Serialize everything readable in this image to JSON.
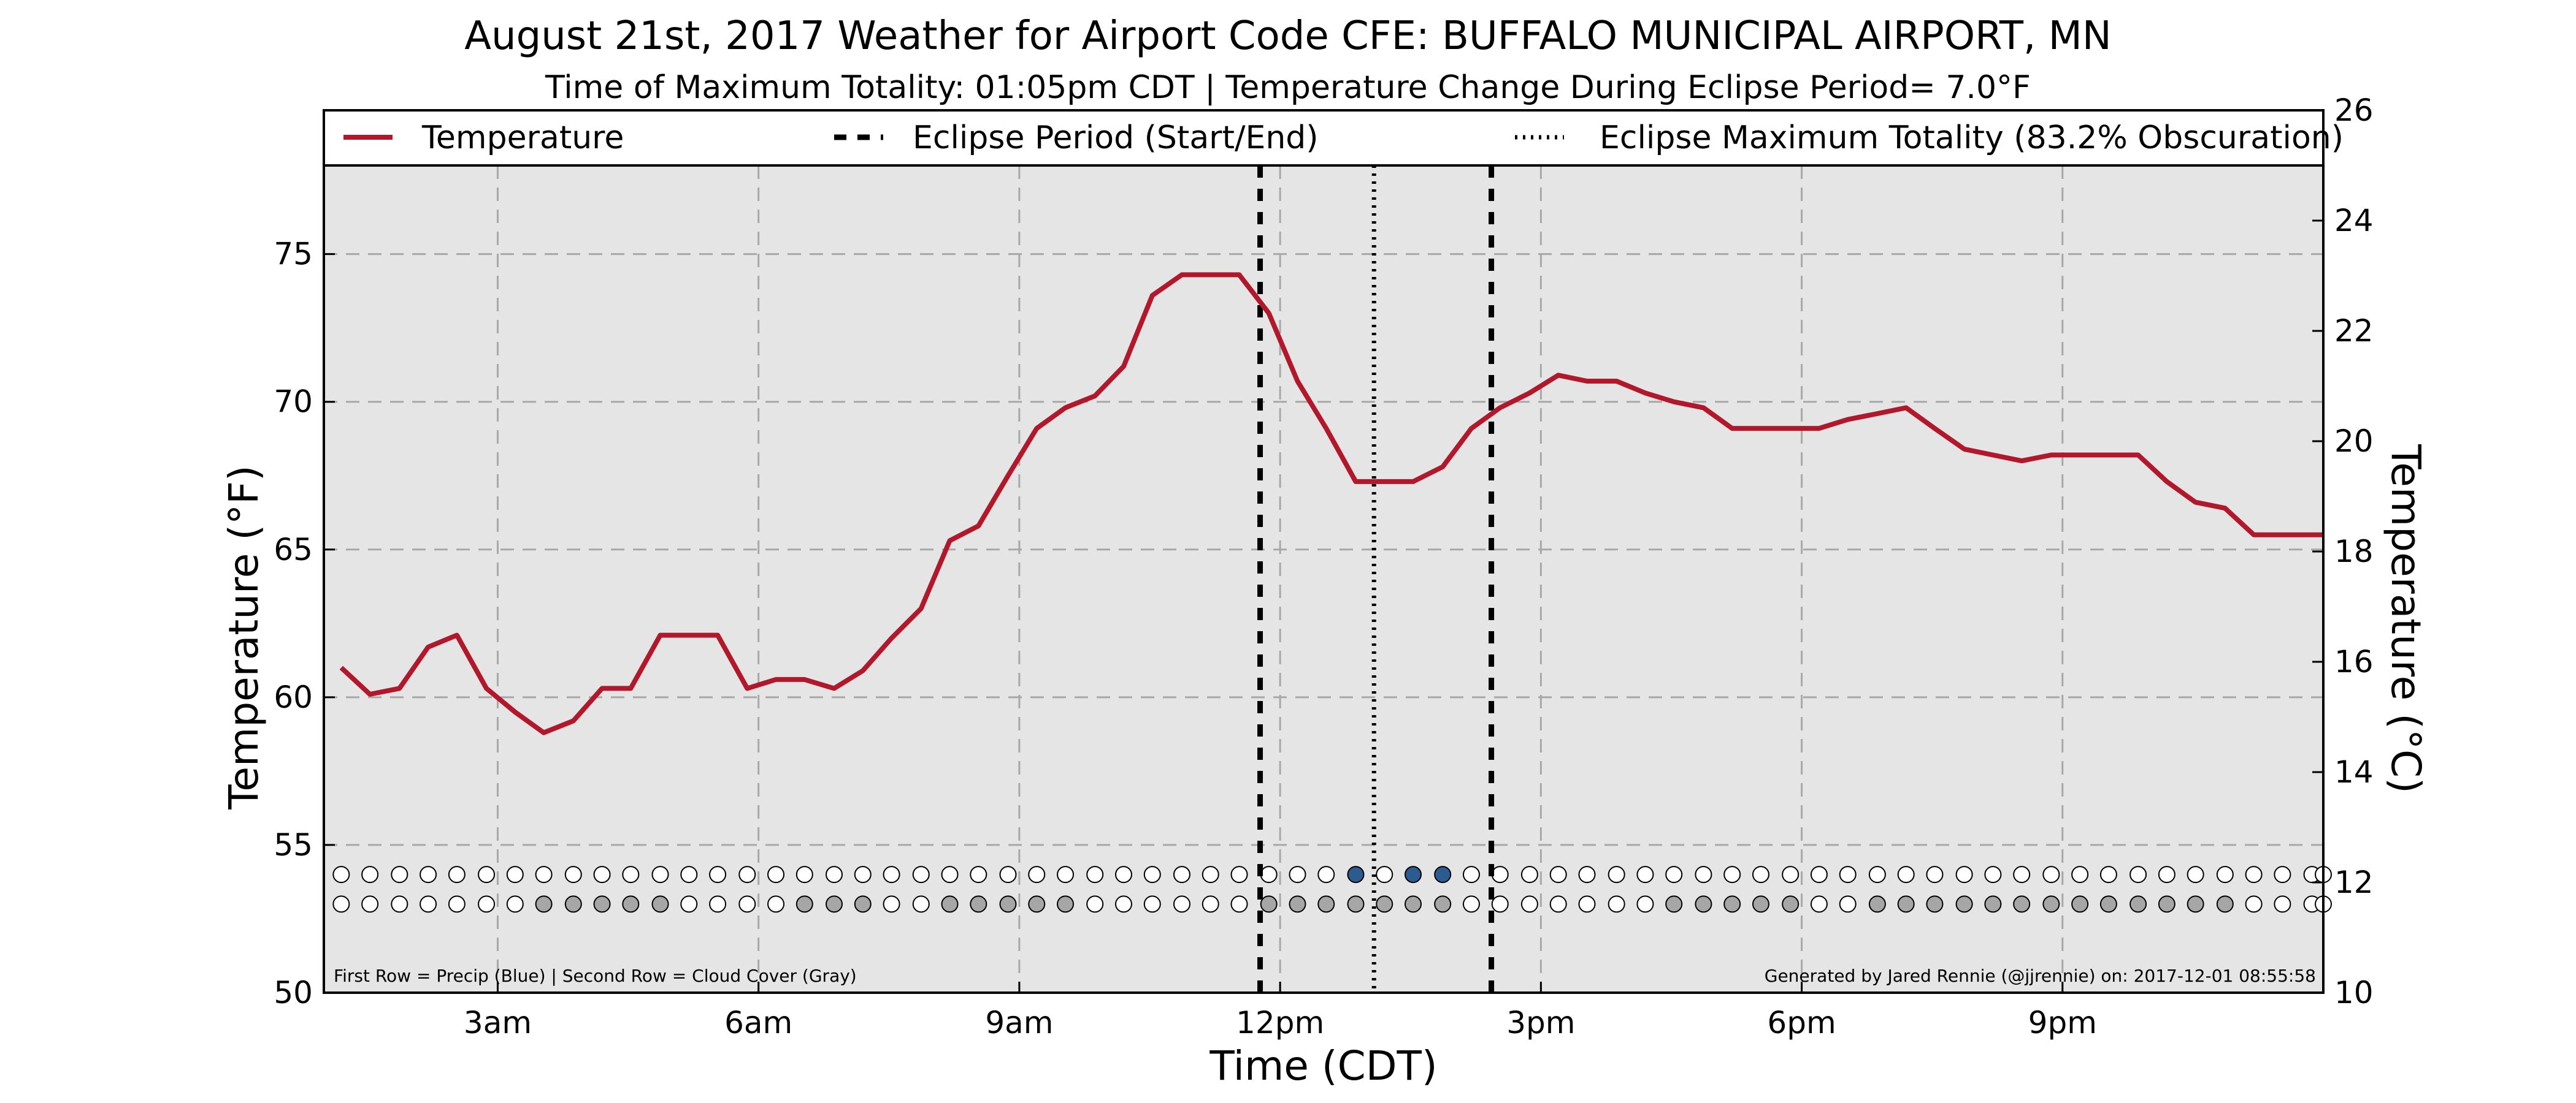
{
  "chart_data": {
    "type": "line",
    "title": "August 21st, 2017 Weather for Airport Code CFE: BUFFALO MUNICIPAL AIRPORT, MN",
    "subtitle": "Time of Maximum Totality: 01:05pm CDT | Temperature Change During Eclipse Period= 7.0°F",
    "xlabel": "Time (CDT)",
    "ylabel": "Temperature (°F)",
    "ylabel_right": "Temperature (°C)",
    "xlim": [
      1.0,
      24.0
    ],
    "ylim": [
      50,
      78
    ],
    "ylim_right": [
      10,
      26
    ],
    "x_ticks": [
      {
        "value": 3,
        "label": "3am"
      },
      {
        "value": 6,
        "label": "6am"
      },
      {
        "value": 9,
        "label": "9am"
      },
      {
        "value": 12,
        "label": "12pm"
      },
      {
        "value": 15,
        "label": "3pm"
      },
      {
        "value": 18,
        "label": "6pm"
      },
      {
        "value": 21,
        "label": "9pm"
      }
    ],
    "y_ticks": [
      50,
      55,
      60,
      65,
      70,
      75
    ],
    "y_ticks_right": [
      10,
      12,
      14,
      16,
      18,
      20,
      22,
      24,
      26
    ],
    "grid": true,
    "legend_position": "top",
    "legend": [
      {
        "label": "Temperature",
        "style": "solid"
      },
      {
        "label": "Eclipse Period (Start/End)",
        "style": "dashed"
      },
      {
        "label": "Eclipse Maximum Totality (83.2% Obscuration)",
        "style": "dotted"
      }
    ],
    "series": [
      {
        "name": "Temperature",
        "color": "#b2182b",
        "points": [
          [
            1.2,
            61.0
          ],
          [
            1.53,
            60.1
          ],
          [
            1.87,
            60.3
          ],
          [
            2.2,
            61.7
          ],
          [
            2.53,
            62.1
          ],
          [
            2.87,
            60.3
          ],
          [
            3.2,
            59.5
          ],
          [
            3.53,
            58.8
          ],
          [
            3.87,
            59.2
          ],
          [
            4.2,
            60.3
          ],
          [
            4.53,
            60.3
          ],
          [
            4.87,
            62.1
          ],
          [
            5.2,
            62.1
          ],
          [
            5.53,
            62.1
          ],
          [
            5.87,
            60.3
          ],
          [
            6.2,
            60.6
          ],
          [
            6.53,
            60.6
          ],
          [
            6.87,
            60.3
          ],
          [
            7.2,
            60.9
          ],
          [
            7.53,
            62.0
          ],
          [
            7.87,
            63.0
          ],
          [
            8.2,
            65.3
          ],
          [
            8.53,
            65.8
          ],
          [
            8.87,
            67.5
          ],
          [
            9.2,
            69.1
          ],
          [
            9.53,
            69.8
          ],
          [
            9.87,
            70.2
          ],
          [
            10.2,
            71.2
          ],
          [
            10.53,
            73.6
          ],
          [
            10.87,
            74.3
          ],
          [
            11.2,
            74.3
          ],
          [
            11.53,
            74.3
          ],
          [
            11.87,
            73.0
          ],
          [
            12.2,
            70.7
          ],
          [
            12.53,
            69.1
          ],
          [
            12.87,
            67.3
          ],
          [
            13.2,
            67.3
          ],
          [
            13.53,
            67.3
          ],
          [
            13.87,
            67.8
          ],
          [
            14.2,
            69.1
          ],
          [
            14.53,
            69.8
          ],
          [
            14.87,
            70.3
          ],
          [
            15.2,
            70.9
          ],
          [
            15.53,
            70.7
          ],
          [
            15.87,
            70.7
          ],
          [
            16.2,
            70.3
          ],
          [
            16.53,
            70.0
          ],
          [
            16.87,
            69.8
          ],
          [
            17.2,
            69.1
          ],
          [
            17.53,
            69.1
          ],
          [
            17.87,
            69.1
          ],
          [
            18.2,
            69.1
          ],
          [
            18.53,
            69.4
          ],
          [
            18.87,
            69.6
          ],
          [
            19.2,
            69.8
          ],
          [
            19.53,
            69.1
          ],
          [
            19.87,
            68.4
          ],
          [
            20.2,
            68.2
          ],
          [
            20.53,
            68.0
          ],
          [
            20.87,
            68.2
          ],
          [
            21.2,
            68.2
          ],
          [
            21.53,
            68.2
          ],
          [
            21.87,
            68.2
          ],
          [
            22.2,
            67.3
          ],
          [
            22.53,
            66.6
          ],
          [
            22.87,
            66.4
          ],
          [
            23.2,
            65.5
          ],
          [
            23.53,
            65.5
          ],
          [
            23.87,
            65.5
          ],
          [
            24.0,
            65.5
          ]
        ]
      }
    ],
    "eclipse_start": 11.77,
    "eclipse_max": 13.08,
    "eclipse_end": 14.43,
    "precip_row_y": 54.0,
    "cloud_row_y": 53.0,
    "dot_x": [
      1.2,
      1.53,
      1.87,
      2.2,
      2.53,
      2.87,
      3.2,
      3.53,
      3.87,
      4.2,
      4.53,
      4.87,
      5.2,
      5.53,
      5.87,
      6.2,
      6.53,
      6.87,
      7.2,
      7.53,
      7.87,
      8.2,
      8.53,
      8.87,
      9.2,
      9.53,
      9.87,
      10.2,
      10.53,
      10.87,
      11.2,
      11.53,
      11.87,
      12.2,
      12.53,
      12.87,
      13.2,
      13.53,
      13.87,
      14.2,
      14.53,
      14.87,
      15.2,
      15.53,
      15.87,
      16.2,
      16.53,
      16.87,
      17.2,
      17.53,
      17.87,
      18.2,
      18.53,
      18.87,
      19.2,
      19.53,
      19.87,
      20.2,
      20.53,
      20.87,
      21.2,
      21.53,
      21.87,
      22.2,
      22.53,
      22.87,
      23.2,
      23.53,
      23.87,
      24.0
    ],
    "precip_flags": [
      0,
      0,
      0,
      0,
      0,
      0,
      0,
      0,
      0,
      0,
      0,
      0,
      0,
      0,
      0,
      0,
      0,
      0,
      0,
      0,
      0,
      0,
      0,
      0,
      0,
      0,
      0,
      0,
      0,
      0,
      0,
      0,
      0,
      0,
      0,
      1,
      0,
      1,
      1,
      0,
      0,
      0,
      0,
      0,
      0,
      0,
      0,
      0,
      0,
      0,
      0,
      0,
      0,
      0,
      0,
      0,
      0,
      0,
      0,
      0,
      0,
      0,
      0,
      0,
      0,
      0,
      0,
      0,
      0,
      0
    ],
    "cloud_flags": [
      0,
      0,
      0,
      0,
      0,
      0,
      0,
      1,
      1,
      1,
      1,
      1,
      0,
      0,
      0,
      0,
      1,
      1,
      1,
      0,
      0,
      1,
      1,
      1,
      1,
      1,
      0,
      0,
      0,
      0,
      0,
      0,
      1,
      1,
      1,
      1,
      1,
      1,
      1,
      0,
      0,
      0,
      0,
      0,
      0,
      0,
      1,
      1,
      1,
      1,
      1,
      0,
      0,
      1,
      1,
      1,
      1,
      1,
      1,
      1,
      1,
      1,
      1,
      1,
      1,
      1,
      0,
      0,
      0,
      0
    ],
    "colors": {
      "temperature": "#b2182b",
      "plot_bg": "#e5e5e5",
      "precip": "#2b5c8f",
      "cloud": "#a6a6a6",
      "grid": "#a8a8a8"
    },
    "footnote_left": "First Row = Precip (Blue) | Second Row = Cloud Cover (Gray)",
    "footnote_right": "Generated by Jared Rennie (@jjrennie) on: 2017-12-01 08:55:58"
  }
}
